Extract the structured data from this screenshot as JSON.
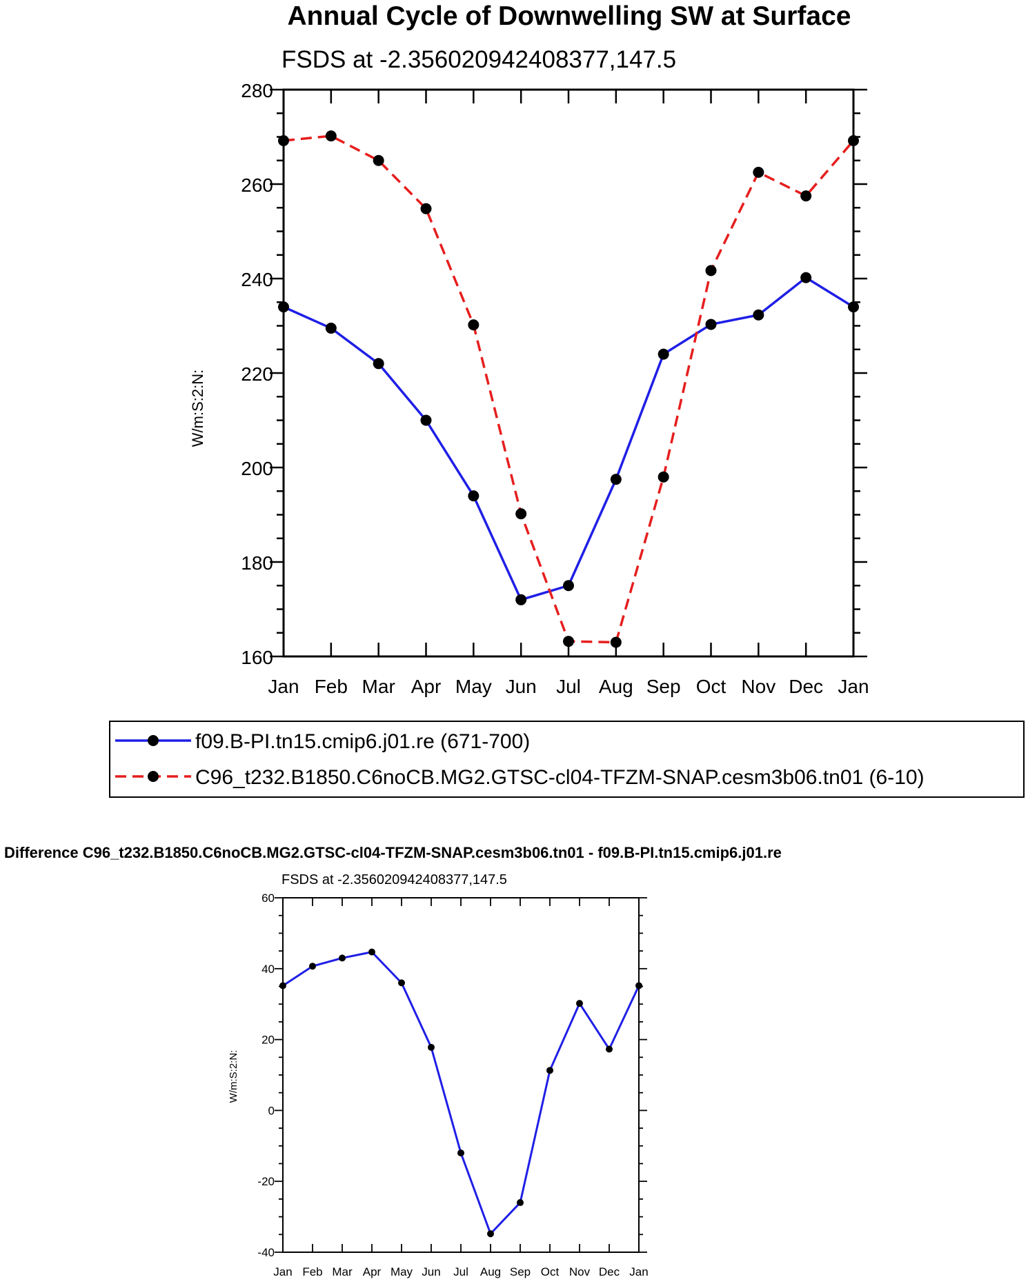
{
  "chart_data": [
    {
      "type": "line",
      "title": "Annual Cycle of Downwelling SW at Surface",
      "subtitle": "FSDS at -2.356020942408377,147.5",
      "xlabel": "",
      "ylabel": "W/m:S:2:N:",
      "categories": [
        "Jan",
        "Feb",
        "Mar",
        "Apr",
        "May",
        "Jun",
        "Jul",
        "Aug",
        "Sep",
        "Oct",
        "Nov",
        "Dec",
        "Jan"
      ],
      "ylim": [
        160,
        280
      ],
      "yticks": [
        "160",
        "180",
        "200",
        "220",
        "240",
        "260",
        "280"
      ],
      "legend_position": "bottom",
      "series": [
        {
          "name": "f09.B-PI.tn15.cmip6.j01.re (671-700)",
          "color": "#1f1fe6",
          "style": "solid",
          "values": [
            234,
            229.5,
            222,
            210,
            194,
            172,
            175,
            197.5,
            224,
            230.3,
            232.3,
            240.2,
            234
          ]
        },
        {
          "name": "C96_t232.B1850.C6noCB.MG2.GTSC-cl04-TFZM-SNAP.cesm3b06.tn01 (6-10)",
          "color": "#e61e1e",
          "style": "dashed",
          "values": [
            269.2,
            270.2,
            265,
            254.8,
            230.2,
            190.2,
            163.2,
            163,
            198,
            241.7,
            262.5,
            257.5,
            269.2
          ]
        }
      ]
    },
    {
      "type": "line",
      "title": "Difference C96_t232.B1850.C6noCB.MG2.GTSC-cl04-TFZM-SNAP.cesm3b06.tn01 - f09.B-PI.tn15.cmip6.j01.re",
      "subtitle": "FSDS at -2.356020942408377,147.5",
      "xlabel": "",
      "ylabel": "W/m:S:2:N:",
      "categories": [
        "Jan",
        "Feb",
        "Mar",
        "Apr",
        "May",
        "Jun",
        "Jul",
        "Aug",
        "Sep",
        "Oct",
        "Nov",
        "Dec",
        "Jan"
      ],
      "ylim": [
        -40,
        60
      ],
      "yticks": [
        "-40",
        "-20",
        "0",
        "20",
        "40",
        "60"
      ],
      "series": [
        {
          "name": "Difference",
          "color": "#1f1fe6",
          "style": "solid",
          "values": [
            35.2,
            40.7,
            43,
            44.7,
            36,
            17.8,
            -12,
            -34.8,
            -26,
            11.3,
            30.2,
            17.3,
            35.2
          ]
        }
      ]
    }
  ]
}
